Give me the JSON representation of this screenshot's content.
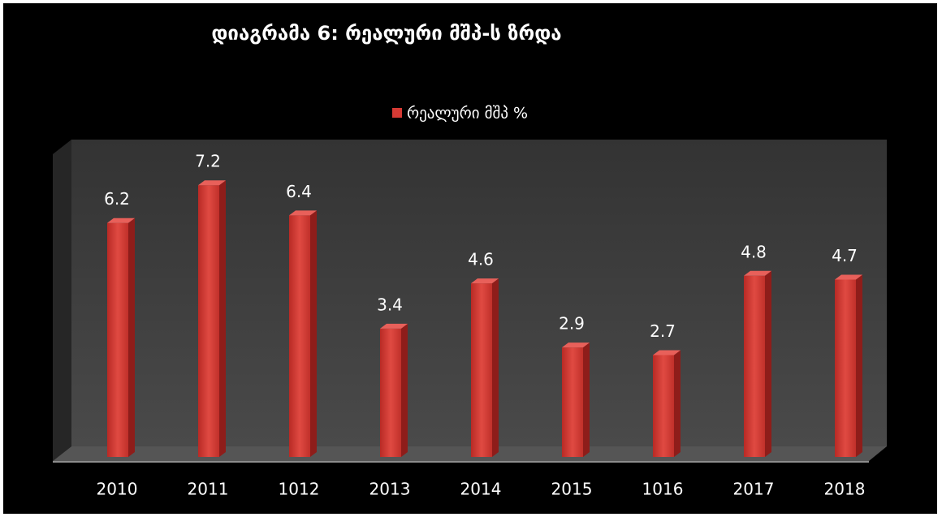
{
  "chart_data": {
    "type": "bar",
    "title": "დიაგრამა 6:  რეალური მშპ-ს ზრდა",
    "categories": [
      "2010",
      "2011",
      "1012",
      "2013",
      "2014",
      "2015",
      "1016",
      "2017",
      "2018"
    ],
    "series": [
      {
        "name": "რეალური მშპ %",
        "color": "#d63a34",
        "values": [
          6.2,
          7.2,
          6.4,
          3.4,
          4.6,
          2.9,
          2.7,
          4.8,
          4.7
        ]
      }
    ],
    "ylim": [
      0,
      8
    ],
    "legend": "top"
  }
}
